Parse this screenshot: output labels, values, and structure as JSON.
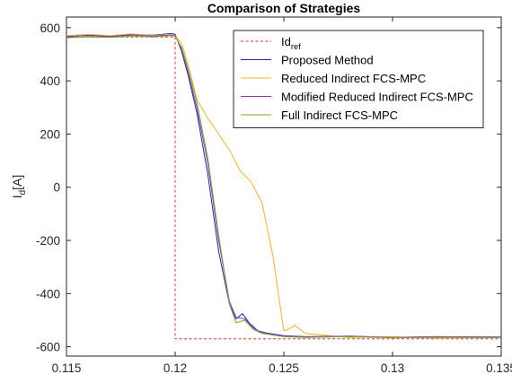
{
  "chart_data": {
    "type": "line",
    "title": "Comparison of Strategies",
    "ylabel_main": "I",
    "ylabel_sub": "d",
    "ylabel_unit": "[A]",
    "xlim": [
      0.115,
      0.135
    ],
    "ylim": [
      -635,
      640
    ],
    "xticks": [
      0.115,
      0.12,
      0.125,
      0.13,
      0.135
    ],
    "xtick_labels": [
      "0.115",
      "0.12",
      "0.125",
      "0.13",
      "0.135"
    ],
    "yticks": [
      -600,
      -400,
      -200,
      0,
      200,
      400,
      600
    ],
    "ytick_labels": [
      "-600",
      "-400",
      "-200",
      "0",
      "200",
      "400",
      "600"
    ],
    "grid": false,
    "legend_position": "top-right",
    "series": [
      {
        "name": "Id",
        "name_sub": "ref",
        "color": "#e8302a",
        "dash": "3,2.5",
        "x": [
          0.115,
          0.12,
          0.12,
          0.135
        ],
        "y": [
          565,
          565,
          -570,
          -570
        ]
      },
      {
        "name": "Proposed Method",
        "color": "#1f1fc8",
        "x": [
          0.115,
          0.116,
          0.117,
          0.118,
          0.119,
          0.1198,
          0.12,
          0.1203,
          0.1206,
          0.121,
          0.1215,
          0.122,
          0.1225,
          0.1228,
          0.1231,
          0.1234,
          0.1238,
          0.1242,
          0.125,
          0.126,
          0.128,
          0.13,
          0.132,
          0.135
        ],
        "y": [
          565,
          572,
          568,
          575,
          572,
          578,
          575,
          510,
          420,
          280,
          50,
          -240,
          -440,
          -495,
          -475,
          -510,
          -540,
          -548,
          -558,
          -562,
          -560,
          -565,
          -562,
          -563
        ]
      },
      {
        "name": "Reduced Indirect FCS-MPC",
        "color": "#f0b323",
        "x": [
          0.115,
          0.116,
          0.117,
          0.118,
          0.119,
          0.1198,
          0.12,
          0.1203,
          0.1206,
          0.121,
          0.1215,
          0.122,
          0.1225,
          0.123,
          0.1235,
          0.124,
          0.1245,
          0.1248,
          0.125,
          0.1252,
          0.1255,
          0.126,
          0.128,
          0.13,
          0.132,
          0.135
        ],
        "y": [
          570,
          575,
          570,
          577,
          570,
          575,
          570,
          540,
          460,
          330,
          260,
          200,
          140,
          60,
          20,
          -60,
          -260,
          -430,
          -540,
          -535,
          -520,
          -550,
          -565,
          -562,
          -568,
          -565
        ]
      },
      {
        "name": "Modified Reduced Indirect FCS-MPC",
        "color": "#8e3aa8",
        "x": [
          0.115,
          0.116,
          0.117,
          0.118,
          0.119,
          0.1198,
          0.12,
          0.1203,
          0.1206,
          0.121,
          0.1215,
          0.122,
          0.1225,
          0.1228,
          0.1232,
          0.1236,
          0.124,
          0.125,
          0.126,
          0.128,
          0.13,
          0.132,
          0.135
        ],
        "y": [
          567,
          570,
          566,
          572,
          568,
          572,
          570,
          520,
          430,
          300,
          90,
          -200,
          -430,
          -490,
          -495,
          -530,
          -548,
          -560,
          -563,
          -560,
          -565,
          -562,
          -564
        ]
      },
      {
        "name": "Full Indirect FCS-MPC",
        "color": "#77ac30",
        "x": [
          0.115,
          0.116,
          0.117,
          0.118,
          0.119,
          0.1198,
          0.12,
          0.1203,
          0.1206,
          0.121,
          0.1215,
          0.122,
          0.1225,
          0.1228,
          0.1232,
          0.1236,
          0.124,
          0.125,
          0.126,
          0.128,
          0.13,
          0.132,
          0.135
        ],
        "y": [
          562,
          565,
          563,
          568,
          565,
          570,
          568,
          525,
          445,
          320,
          110,
          -180,
          -440,
          -510,
          -500,
          -535,
          -550,
          -562,
          -565,
          -562,
          -567,
          -565,
          -566
        ]
      }
    ]
  }
}
